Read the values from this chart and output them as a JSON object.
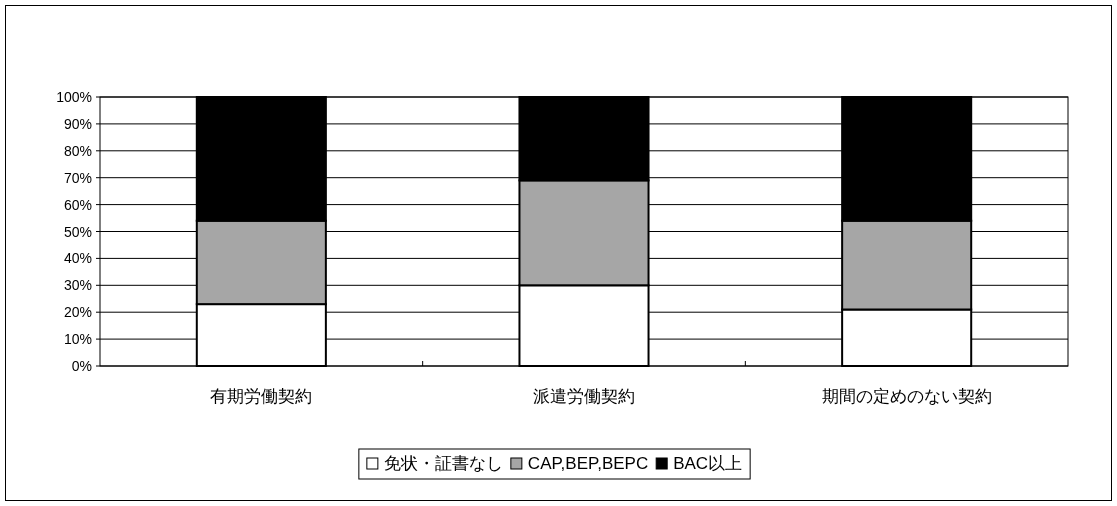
{
  "chart_data": {
    "type": "bar",
    "stacked": true,
    "categories": [
      "有期労働契約",
      "派遣労働契約",
      "期間の定めのない契約"
    ],
    "series": [
      {
        "name": "免状・証書なし",
        "color": "#ffffff",
        "values": [
          23,
          30,
          21
        ]
      },
      {
        "name": "CAP,BEP,BEPC",
        "color": "#a6a6a6",
        "values": [
          31,
          39,
          33
        ]
      },
      {
        "name": "BAC以上",
        "color": "#000000",
        "values": [
          46,
          31,
          46
        ]
      }
    ],
    "ylim": [
      0,
      100
    ],
    "yticks": [
      {
        "value": 0,
        "label": "0%"
      },
      {
        "value": 10,
        "label": "10%"
      },
      {
        "value": 20,
        "label": "20%"
      },
      {
        "value": 30,
        "label": "30%"
      },
      {
        "value": 40,
        "label": "40%"
      },
      {
        "value": 50,
        "label": "50%"
      },
      {
        "value": 60,
        "label": "60%"
      },
      {
        "value": 70,
        "label": "70%"
      },
      {
        "value": 80,
        "label": "80%"
      },
      {
        "value": 90,
        "label": "90%"
      },
      {
        "value": 100,
        "label": "100%"
      }
    ],
    "grid": "y",
    "legend": "bottom"
  }
}
